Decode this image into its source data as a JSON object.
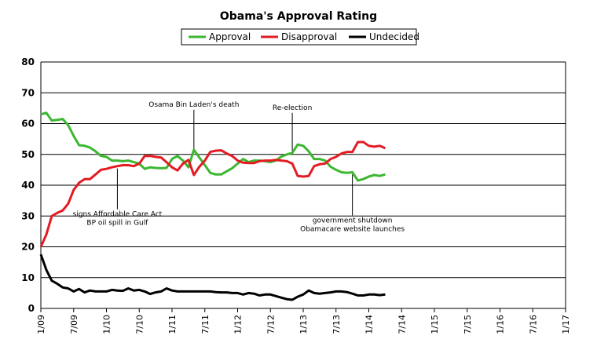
{
  "chart_data": {
    "type": "line",
    "title": "Obama's Approval Rating",
    "xlabel": "",
    "ylabel": "",
    "ylim": [
      0,
      80
    ],
    "yticks": [
      0,
      10,
      20,
      30,
      40,
      50,
      60,
      70,
      80
    ],
    "xticks": [
      "1/09",
      "7/09",
      "1/10",
      "7/10",
      "1/11",
      "7/11",
      "1/12",
      "7/12",
      "1/13",
      "7/13",
      "1/14",
      "7/14",
      "1/15",
      "7/15",
      "1/16",
      "7/16",
      "1/17"
    ],
    "grid": "horizontal",
    "legend_position": "top",
    "series": [
      {
        "name": "Approval",
        "color": "#3cb731",
        "points": [
          [
            "2009-01",
            63
          ],
          [
            "2009-02",
            63.5
          ],
          [
            "2009-03",
            61
          ],
          [
            "2009-04",
            61.2
          ],
          [
            "2009-05",
            61.5
          ],
          [
            "2009-06",
            59.5
          ],
          [
            "2009-07",
            56
          ],
          [
            "2009-08",
            53
          ],
          [
            "2009-09",
            52.8
          ],
          [
            "2009-10",
            52.2
          ],
          [
            "2009-11",
            51
          ],
          [
            "2009-12",
            49.5
          ],
          [
            "2010-01",
            49.2
          ],
          [
            "2010-02",
            48
          ],
          [
            "2010-03",
            48
          ],
          [
            "2010-04",
            47.8
          ],
          [
            "2010-05",
            48
          ],
          [
            "2010-06",
            47.5
          ],
          [
            "2010-07",
            47
          ],
          [
            "2010-08",
            45.3
          ],
          [
            "2010-09",
            45.8
          ],
          [
            "2010-10",
            45.6
          ],
          [
            "2010-11",
            45.5
          ],
          [
            "2010-12",
            45.6
          ],
          [
            "2011-01",
            48.5
          ],
          [
            "2011-02",
            49.5
          ],
          [
            "2011-03",
            48
          ],
          [
            "2011-04",
            45.8
          ],
          [
            "2011-05",
            51.5
          ],
          [
            "2011-06",
            49
          ],
          [
            "2011-07",
            46.5
          ],
          [
            "2011-08",
            44
          ],
          [
            "2011-09",
            43.5
          ],
          [
            "2011-10",
            43.5
          ],
          [
            "2011-11",
            44.5
          ],
          [
            "2011-12",
            45.5
          ],
          [
            "2012-01",
            47
          ],
          [
            "2012-02",
            48.5
          ],
          [
            "2012-03",
            47.5
          ],
          [
            "2012-04",
            48
          ],
          [
            "2012-05",
            48
          ],
          [
            "2012-06",
            47.8
          ],
          [
            "2012-07",
            47.5
          ],
          [
            "2012-08",
            48
          ],
          [
            "2012-09",
            49.3
          ],
          [
            "2012-10",
            50
          ],
          [
            "2012-11",
            50.5
          ],
          [
            "2012-12",
            53.2
          ],
          [
            "2013-01",
            52.8
          ],
          [
            "2013-02",
            51
          ],
          [
            "2013-03",
            48.5
          ],
          [
            "2013-04",
            48.5
          ],
          [
            "2013-05",
            48
          ],
          [
            "2013-06",
            46
          ],
          [
            "2013-07",
            45
          ],
          [
            "2013-08",
            44.2
          ],
          [
            "2013-09",
            44
          ],
          [
            "2013-10",
            44.2
          ],
          [
            "2013-11",
            41.5
          ],
          [
            "2013-12",
            42
          ],
          [
            "2014-01",
            42.8
          ],
          [
            "2014-02",
            43.3
          ],
          [
            "2014-03",
            43
          ],
          [
            "2014-04",
            43.5
          ]
        ]
      },
      {
        "name": "Disapproval",
        "color": "#e31b23",
        "points": [
          [
            "2009-01",
            20
          ],
          [
            "2009-02",
            24
          ],
          [
            "2009-03",
            30
          ],
          [
            "2009-04",
            31
          ],
          [
            "2009-05",
            31.8
          ],
          [
            "2009-06",
            34
          ],
          [
            "2009-07",
            38.5
          ],
          [
            "2009-08",
            40.8
          ],
          [
            "2009-09",
            42
          ],
          [
            "2009-10",
            42
          ],
          [
            "2009-11",
            43.5
          ],
          [
            "2009-12",
            45
          ],
          [
            "2010-01",
            45.3
          ],
          [
            "2010-02",
            45.8
          ],
          [
            "2010-03",
            46.2
          ],
          [
            "2010-04",
            46.5
          ],
          [
            "2010-05",
            46.5
          ],
          [
            "2010-06",
            46.2
          ],
          [
            "2010-07",
            47
          ],
          [
            "2010-08",
            49.5
          ],
          [
            "2010-09",
            49.5
          ],
          [
            "2010-10",
            49.2
          ],
          [
            "2010-11",
            49
          ],
          [
            "2010-12",
            47.5
          ],
          [
            "2011-01",
            45.8
          ],
          [
            "2011-02",
            44.8
          ],
          [
            "2011-03",
            47
          ],
          [
            "2011-04",
            48.2
          ],
          [
            "2011-05",
            43.3
          ],
          [
            "2011-06",
            46
          ],
          [
            "2011-07",
            48
          ],
          [
            "2011-08",
            50.8
          ],
          [
            "2011-09",
            51.2
          ],
          [
            "2011-10",
            51.3
          ],
          [
            "2011-11",
            50.3
          ],
          [
            "2011-12",
            49.5
          ],
          [
            "2012-01",
            48
          ],
          [
            "2012-02",
            47.3
          ],
          [
            "2012-03",
            47.2
          ],
          [
            "2012-04",
            47.2
          ],
          [
            "2012-05",
            47.8
          ],
          [
            "2012-06",
            48
          ],
          [
            "2012-07",
            48
          ],
          [
            "2012-08",
            48.2
          ],
          [
            "2012-09",
            48
          ],
          [
            "2012-10",
            47.8
          ],
          [
            "2012-11",
            47
          ],
          [
            "2012-12",
            43
          ],
          [
            "2013-01",
            42.8
          ],
          [
            "2013-02",
            43
          ],
          [
            "2013-03",
            46.2
          ],
          [
            "2013-04",
            46.8
          ],
          [
            "2013-05",
            47
          ],
          [
            "2013-06",
            48.5
          ],
          [
            "2013-07",
            49.2
          ],
          [
            "2013-08",
            50.3
          ],
          [
            "2013-09",
            50.8
          ],
          [
            "2013-10",
            50.8
          ],
          [
            "2013-11",
            54
          ],
          [
            "2013-12",
            54
          ],
          [
            "2014-01",
            52.8
          ],
          [
            "2014-02",
            52.5
          ],
          [
            "2014-03",
            52.8
          ],
          [
            "2014-04",
            52
          ]
        ]
      },
      {
        "name": "Undecided",
        "color": "#000000",
        "points": [
          [
            "2009-01",
            17.5
          ],
          [
            "2009-02",
            12.5
          ],
          [
            "2009-03",
            9
          ],
          [
            "2009-04",
            8
          ],
          [
            "2009-05",
            6.8
          ],
          [
            "2009-06",
            6.5
          ],
          [
            "2009-07",
            5.5
          ],
          [
            "2009-08",
            6.3
          ],
          [
            "2009-09",
            5.2
          ],
          [
            "2009-10",
            5.8
          ],
          [
            "2009-11",
            5.5
          ],
          [
            "2009-12",
            5.5
          ],
          [
            "2010-01",
            5.5
          ],
          [
            "2010-02",
            6
          ],
          [
            "2010-03",
            5.8
          ],
          [
            "2010-04",
            5.7
          ],
          [
            "2010-05",
            6.5
          ],
          [
            "2010-06",
            5.8
          ],
          [
            "2010-07",
            6
          ],
          [
            "2010-08",
            5.5
          ],
          [
            "2010-09",
            4.7
          ],
          [
            "2010-10",
            5.2
          ],
          [
            "2010-11",
            5.5
          ],
          [
            "2010-12",
            6.5
          ],
          [
            "2011-01",
            5.8
          ],
          [
            "2011-02",
            5.5
          ],
          [
            "2011-03",
            5.5
          ],
          [
            "2011-04",
            5.5
          ],
          [
            "2011-05",
            5.5
          ],
          [
            "2011-06",
            5.5
          ],
          [
            "2011-07",
            5.5
          ],
          [
            "2011-08",
            5.5
          ],
          [
            "2011-09",
            5.3
          ],
          [
            "2011-10",
            5.2
          ],
          [
            "2011-11",
            5.2
          ],
          [
            "2011-12",
            5
          ],
          [
            "2012-01",
            5
          ],
          [
            "2012-02",
            4.5
          ],
          [
            "2012-03",
            5
          ],
          [
            "2012-04",
            4.8
          ],
          [
            "2012-05",
            4.2
          ],
          [
            "2012-06",
            4.5
          ],
          [
            "2012-07",
            4.5
          ],
          [
            "2012-08",
            4
          ],
          [
            "2012-09",
            3.5
          ],
          [
            "2012-10",
            3
          ],
          [
            "2012-11",
            2.8
          ],
          [
            "2012-12",
            3.8
          ],
          [
            "2013-01",
            4.5
          ],
          [
            "2013-02",
            5.8
          ],
          [
            "2013-03",
            5
          ],
          [
            "2013-04",
            4.8
          ],
          [
            "2013-05",
            5
          ],
          [
            "2013-06",
            5.2
          ],
          [
            "2013-07",
            5.5
          ],
          [
            "2013-08",
            5.5
          ],
          [
            "2013-09",
            5.3
          ],
          [
            "2013-10",
            4.8
          ],
          [
            "2013-11",
            4.2
          ],
          [
            "2013-12",
            4.2
          ],
          [
            "2014-01",
            4.5
          ],
          [
            "2014-02",
            4.5
          ],
          [
            "2014-03",
            4.3
          ],
          [
            "2014-04",
            4.5
          ]
        ]
      }
    ],
    "annotations": [
      {
        "date": "2011-05",
        "value": 51.5,
        "lines": [
          "Osama Bin Laden's death"
        ],
        "label_position": "above"
      },
      {
        "date": "2012-11",
        "value": 50.5,
        "lines": [
          "Re-election"
        ],
        "label_position": "above"
      },
      {
        "date": "2010-03",
        "value": 46.2,
        "lines": [
          "signs Affordable Care Act",
          "BP oil spill in Gulf"
        ],
        "label_position": "below"
      },
      {
        "date": "2013-10",
        "value": 44.2,
        "lines": [
          "government shutdown",
          "Obamacare website launches"
        ],
        "label_position": "below"
      }
    ]
  }
}
